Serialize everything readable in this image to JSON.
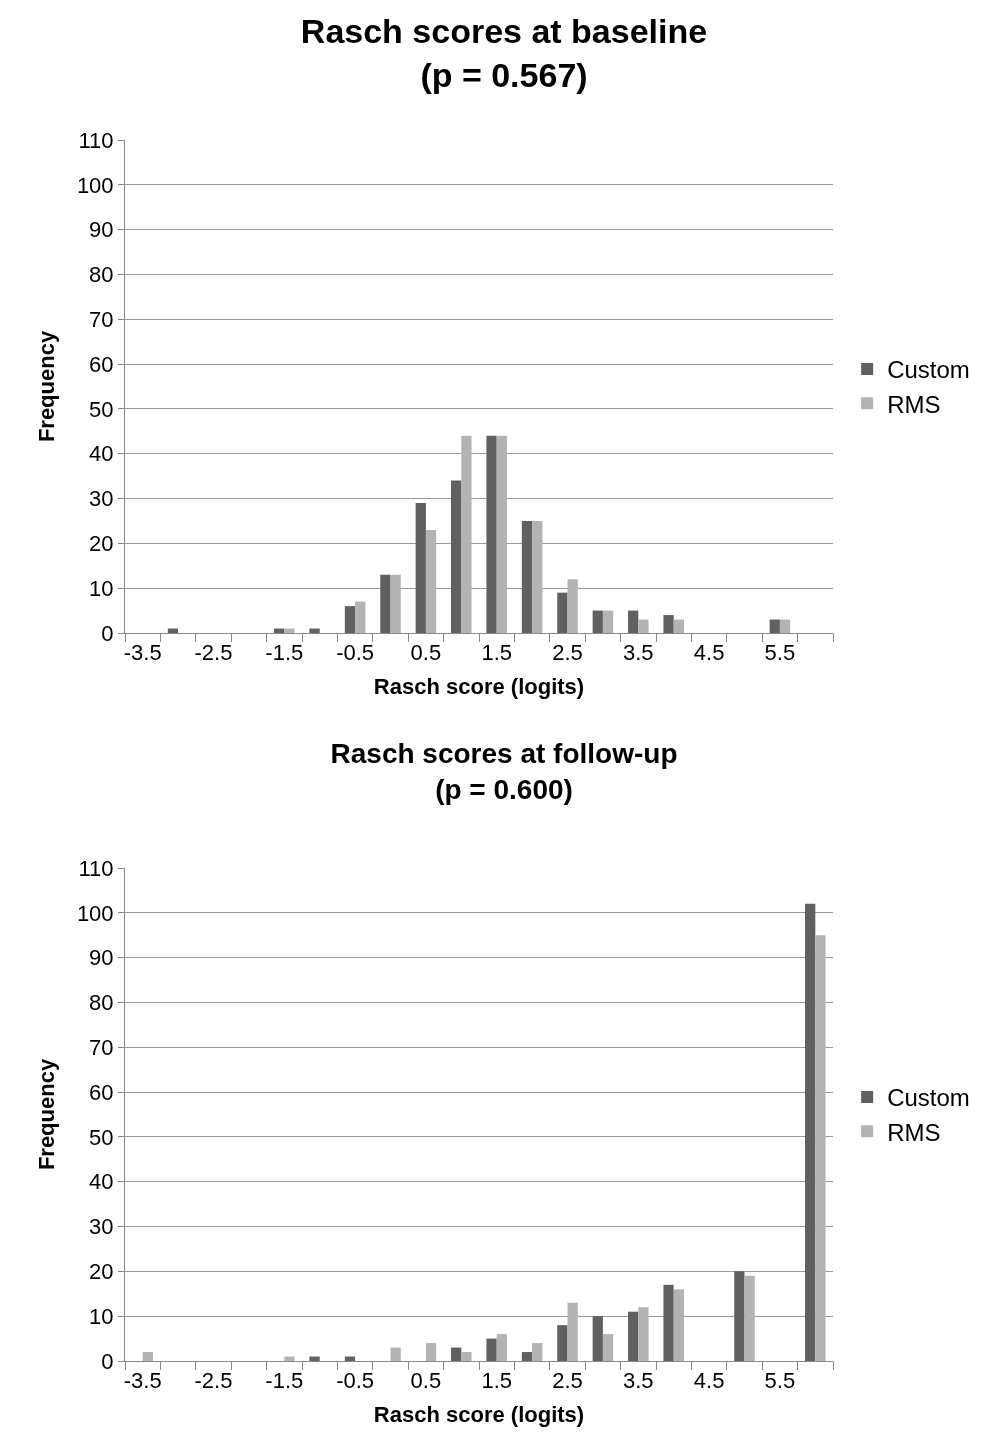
{
  "chart_data": [
    {
      "type": "bar",
      "title": "Rasch scores at baseline",
      "subtitle": "(p = 0.567)",
      "xlabel": "Rasch score (logits)",
      "ylabel": "Frequency",
      "categories": [
        "-3.5",
        null,
        "-2.5",
        null,
        "-1.5",
        null,
        "-0.5",
        null,
        "0.5",
        null,
        "1.5",
        null,
        "2.5",
        null,
        "3.5",
        null,
        "4.5",
        null,
        "5.5",
        null
      ],
      "series": [
        {
          "name": "Custom",
          "color": "#606060",
          "values": [
            0,
            1,
            0,
            0,
            1,
            1,
            6,
            13,
            29,
            34,
            44,
            25,
            9,
            5,
            5,
            4,
            0,
            0,
            3,
            0
          ]
        },
        {
          "name": "RMS",
          "color": "#b3b3b3",
          "values": [
            0,
            0,
            0,
            0,
            1,
            0,
            7,
            13,
            23,
            44,
            44,
            25,
            12,
            5,
            3,
            3,
            0,
            0,
            3,
            0
          ]
        }
      ],
      "ylim": [
        0,
        110
      ],
      "yticks": [
        0,
        10,
        20,
        30,
        40,
        50,
        60,
        70,
        80,
        90,
        100,
        110
      ],
      "grid": "y",
      "legend": "right"
    },
    {
      "type": "bar",
      "title": "Rasch scores at follow-up",
      "subtitle": "(p = 0.600)",
      "xlabel": "Rasch score (logits)",
      "ylabel": "Frequency",
      "categories": [
        "-3.5",
        null,
        "-2.5",
        null,
        "-1.5",
        null,
        "-0.5",
        null,
        "0.5",
        null,
        "1.5",
        null,
        "2.5",
        null,
        "3.5",
        null,
        "4.5",
        null,
        "5.5",
        null
      ],
      "series": [
        {
          "name": "Custom",
          "color": "#606060",
          "values": [
            0,
            0,
            0,
            0,
            0,
            1,
            1,
            0,
            0,
            3,
            5,
            2,
            8,
            10,
            11,
            17,
            0,
            20,
            0,
            102
          ]
        },
        {
          "name": "RMS",
          "color": "#b3b3b3",
          "values": [
            2,
            0,
            0,
            0,
            1,
            0,
            0,
            3,
            4,
            2,
            6,
            4,
            13,
            6,
            12,
            16,
            0,
            19,
            0,
            95
          ]
        }
      ],
      "ylim": [
        0,
        110
      ],
      "yticks": [
        0,
        10,
        20,
        30,
        40,
        50,
        60,
        70,
        80,
        90,
        100,
        110
      ],
      "grid": "y",
      "legend": "right"
    }
  ]
}
